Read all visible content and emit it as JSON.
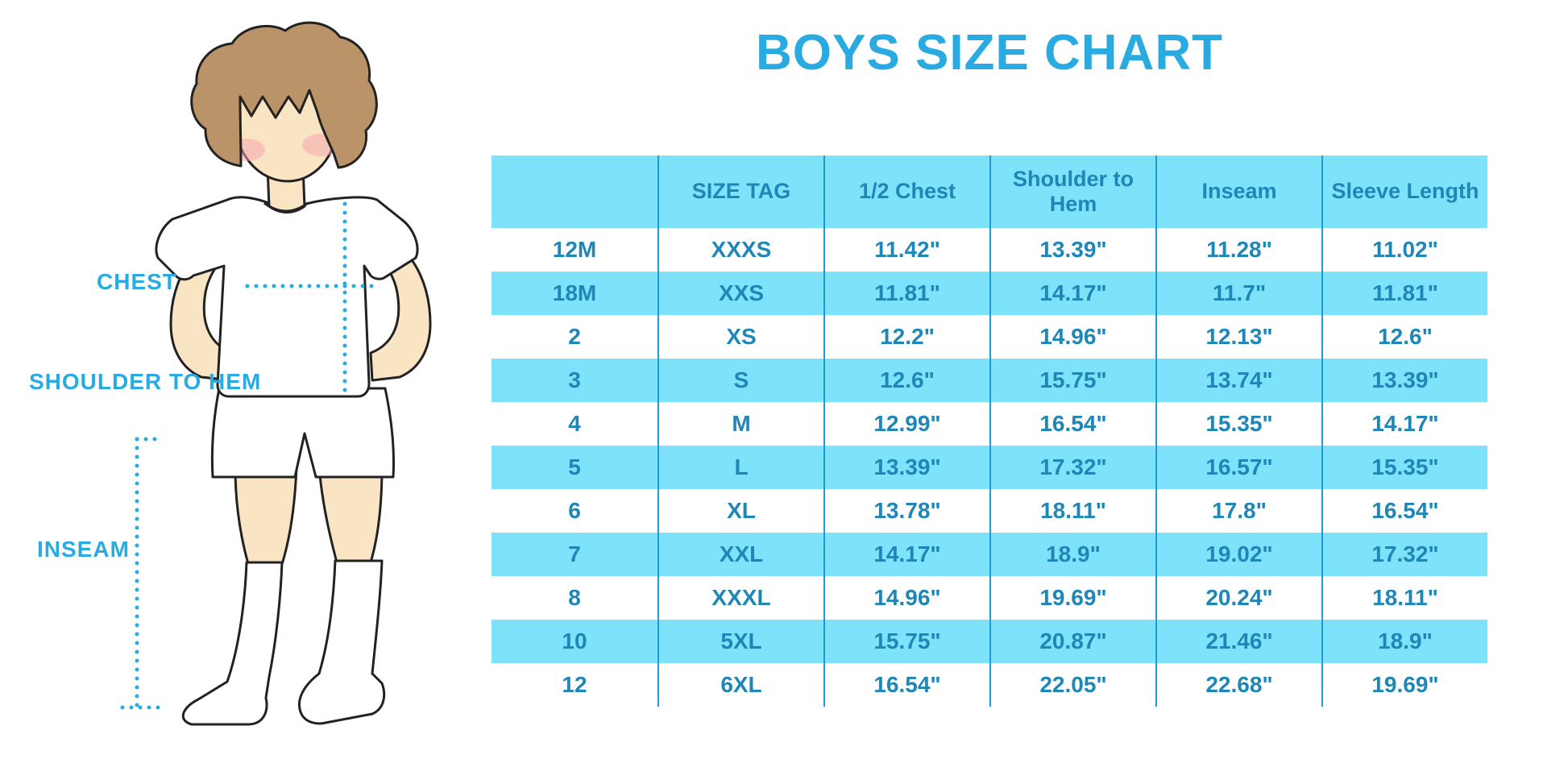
{
  "page": {
    "title": "BOYS SIZE CHART"
  },
  "figure": {
    "description": "cartoon boy in white tee, shorts and knee socks with dotted measurement guides",
    "chest_label": "CHEST",
    "shoulder_hem_label": "SHOULDER TO HEM",
    "inseam_label": "INSEAM"
  },
  "colors": {
    "accent_blue": "#29ABE2",
    "table_fill": "#7DE2FA",
    "table_text": "#1F86B8",
    "table_divider": "#1E9CD2",
    "skin": "#F9E4C3",
    "hair": "#BB9368",
    "cheek": "#F5A8B0",
    "outline": "#222222",
    "background": "#FFFFFF"
  },
  "chart_data": {
    "type": "table",
    "title": "BOYS SIZE CHART",
    "units": "inches",
    "row_striping": "rows alternate white and light blue (#7DE2FA), header light blue",
    "columns": [
      "",
      "SIZE TAG",
      "1/2 Chest",
      "Shoulder to Hem",
      "Inseam",
      "Sleeve Length"
    ],
    "rows": [
      [
        "12M",
        "XXXS",
        "11.42\"",
        "13.39\"",
        "11.28\"",
        "11.02\""
      ],
      [
        "18M",
        "XXS",
        "11.81\"",
        "14.17\"",
        "11.7\"",
        "11.81\""
      ],
      [
        "2",
        "XS",
        "12.2\"",
        "14.96\"",
        "12.13\"",
        "12.6\""
      ],
      [
        "3",
        "S",
        "12.6\"",
        "15.75\"",
        "13.74\"",
        "13.39\""
      ],
      [
        "4",
        "M",
        "12.99\"",
        "16.54\"",
        "15.35\"",
        "14.17\""
      ],
      [
        "5",
        "L",
        "13.39\"",
        "17.32\"",
        "16.57\"",
        "15.35\""
      ],
      [
        "6",
        "XL",
        "13.78\"",
        "18.11\"",
        "17.8\"",
        "16.54\""
      ],
      [
        "7",
        "XXL",
        "14.17\"",
        "18.9\"",
        "19.02\"",
        "17.32\""
      ],
      [
        "8",
        "XXXL",
        "14.96\"",
        "19.69\"",
        "20.24\"",
        "18.11\""
      ],
      [
        "10",
        "5XL",
        "15.75\"",
        "20.87\"",
        "21.46\"",
        "18.9\""
      ],
      [
        "12",
        "6XL",
        "16.54\"",
        "22.05\"",
        "22.68\"",
        "19.69\""
      ]
    ]
  }
}
